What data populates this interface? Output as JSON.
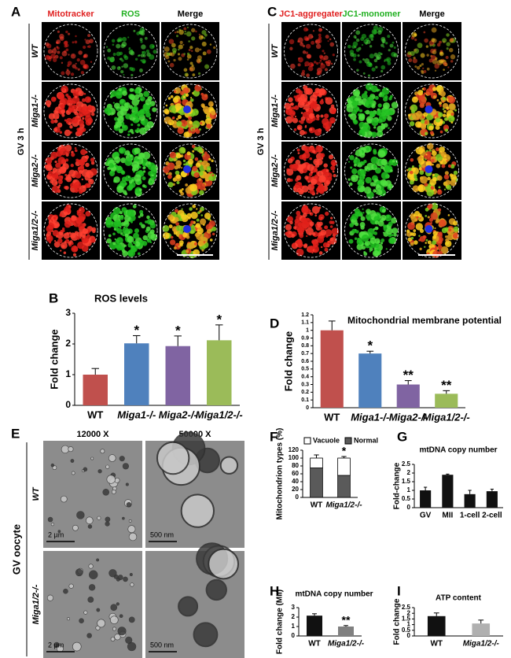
{
  "panel_labels": {
    "a": "A",
    "b": "B",
    "c": "C",
    "d": "D",
    "e": "E",
    "f": "F",
    "g": "G",
    "h": "H",
    "i": "I"
  },
  "panel_a": {
    "columns": [
      "Mitotracker",
      "ROS",
      "Merge"
    ],
    "condition": "GV 3 h",
    "rows": [
      "WT",
      "Miga1-/-",
      "Miga2-/-",
      "Miga1/2-/-"
    ]
  },
  "panel_c": {
    "columns": [
      "JC1-aggregater",
      "JC1-monomer",
      "Merge"
    ],
    "condition": "GV 3 h",
    "rows": [
      "WT",
      "Miga1-/-",
      "Miga2-/-",
      "Miga1/2-/-"
    ]
  },
  "panel_e": {
    "columns": [
      "12000 X",
      "50000 X"
    ],
    "condition": "GV oocyte",
    "rows": [
      "WT",
      "Miga1/2-/-"
    ],
    "scale_bars": [
      [
        "2 µm",
        "500 nm"
      ],
      [
        "2 µm",
        "500 nm"
      ]
    ]
  },
  "chart_data": [
    {
      "type": "bar",
      "title": "ROS levels",
      "ylabel": "Fold change",
      "categories": [
        "WT",
        "Miga1-/-",
        "Miga2-/-",
        "Miga1/2-/-"
      ],
      "values": [
        1,
        2.02,
        1.93,
        2.12
      ],
      "errors": [
        0.2,
        0.25,
        0.33,
        0.5
      ],
      "significance": [
        null,
        "*",
        "*",
        "*"
      ],
      "colors": [
        "#c0504d",
        "#4f81bd",
        "#8064a2",
        "#9bbb59"
      ],
      "ylim": [
        0,
        3
      ],
      "yticks": [
        0,
        1,
        2,
        3
      ]
    },
    {
      "type": "bar",
      "title": "Mitochondrial membrane potential",
      "ylabel": "Fold change",
      "categories": [
        "WT",
        "Miga1-/-",
        "Miga2-/-",
        "Miga1/2-/-"
      ],
      "values": [
        1,
        0.7,
        0.3,
        0.18
      ],
      "errors": [
        0.12,
        0.03,
        0.05,
        0.04
      ],
      "significance": [
        null,
        "*",
        "**",
        "**"
      ],
      "colors": [
        "#c0504d",
        "#4f81bd",
        "#8064a2",
        "#9bbb59"
      ],
      "ylim": [
        0,
        1.2
      ],
      "yticks": [
        0,
        0.1,
        0.2,
        0.3,
        0.4,
        0.5,
        0.6,
        0.7,
        0.8,
        0.9,
        1,
        1.1,
        1.2
      ]
    },
    {
      "type": "stacked_bar",
      "ylabel": "Mitochondrion types (%)",
      "categories": [
        "WT",
        "Miga1/2-/-"
      ],
      "series": [
        {
          "name": "Normal",
          "color": "#5a5a5a",
          "values": [
            75,
            56
          ],
          "errors": [
            10,
            3
          ]
        },
        {
          "name": "Vacuole",
          "color": "#ffffff",
          "values": [
            25,
            44
          ],
          "errors": [
            8,
            4
          ]
        }
      ],
      "significance": [
        null,
        "*"
      ],
      "ylim": [
        0,
        120
      ],
      "yticks": [
        0,
        20,
        40,
        60,
        80,
        100,
        120
      ]
    },
    {
      "type": "bar",
      "title": "mtDNA copy number",
      "ylabel": "Fold-change",
      "categories": [
        "GV",
        "MII",
        "1-cell",
        "2-cell"
      ],
      "values": [
        1,
        1.9,
        0.78,
        0.95
      ],
      "errors": [
        0.18,
        0.04,
        0.22,
        0.12
      ],
      "colors": [
        "#111111",
        "#111111",
        "#111111",
        "#111111"
      ],
      "ylim": [
        0,
        2.5
      ],
      "yticks": [
        0,
        0.5,
        1,
        1.5,
        2,
        2.5
      ]
    },
    {
      "type": "bar",
      "title": "mtDNA copy number",
      "ylabel": "Fold change (MII)",
      "categories": [
        "WT",
        "Miga1/2-/-"
      ],
      "values": [
        2.15,
        1.0
      ],
      "errors": [
        0.2,
        0.1
      ],
      "significance": [
        null,
        "**"
      ],
      "colors": [
        "#111111",
        "#808080"
      ],
      "ylim": [
        0,
        3
      ],
      "yticks": [
        0,
        1,
        2,
        3
      ]
    },
    {
      "type": "bar",
      "title": "ATP content",
      "ylabel": "Fold change",
      "categories": [
        "WT",
        "Miga1/2-/-"
      ],
      "values": [
        1.75,
        1.1
      ],
      "errors": [
        0.28,
        0.3
      ],
      "colors": [
        "#111111",
        "#b0b0b0"
      ],
      "ylim": [
        0,
        2.5
      ],
      "yticks": [
        0,
        0.5,
        1,
        1.5,
        2,
        2.5
      ]
    }
  ]
}
